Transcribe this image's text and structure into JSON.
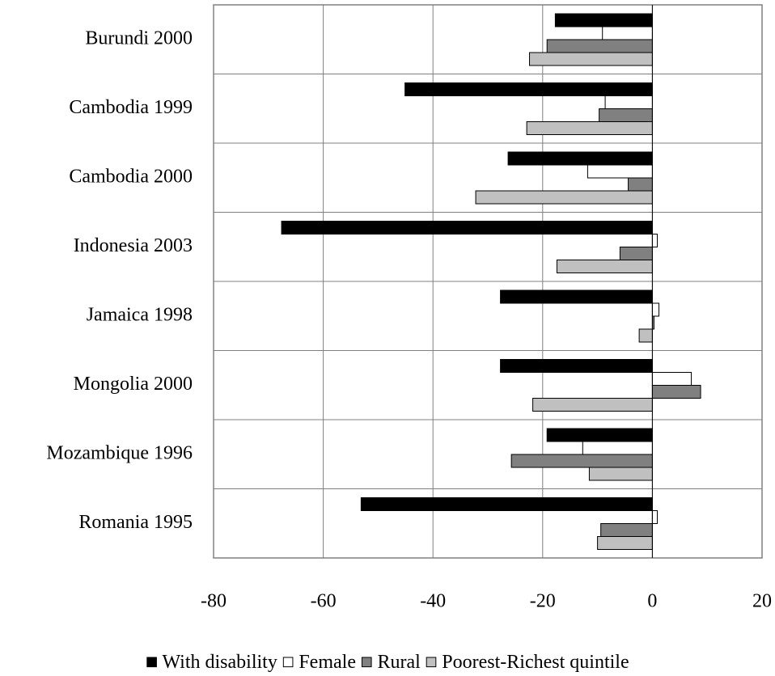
{
  "chart_data": {
    "type": "hbar",
    "categories": [
      "Burundi 2000",
      "Cambodia 1999",
      "Cambodia 2000",
      "Indonesia 2003",
      "Jamaica 1998",
      "Mongolia 2000",
      "Mozambique 1996",
      "Romania 1995"
    ],
    "series": [
      {
        "name": "With disability",
        "color": "#000000",
        "values": [
          -17.7,
          -45.1,
          -26.3,
          -67.6,
          -27.7,
          -27.7,
          -19.2,
          -53.1
        ]
      },
      {
        "name": "Female",
        "color": "#ffffff",
        "values": [
          -9.1,
          -8.6,
          -11.8,
          0.9,
          1.2,
          7.1,
          -12.7,
          0.9
        ]
      },
      {
        "name": "Rural",
        "color": "#808080",
        "values": [
          -19.2,
          -9.7,
          -4.4,
          -5.9,
          0.3,
          8.8,
          -25.7,
          -9.4
        ]
      },
      {
        "name": "Poorest-Richest quintile",
        "color": "#c0c0c0",
        "values": [
          -22.4,
          -22.9,
          -32.2,
          -17.4,
          -2.4,
          -21.8,
          -11.5,
          -10.0
        ]
      }
    ],
    "xlim": [
      -80,
      20
    ],
    "xticks": [
      -80,
      -60,
      -40,
      -20,
      0,
      20
    ],
    "grid": true,
    "legend": "bottom"
  }
}
